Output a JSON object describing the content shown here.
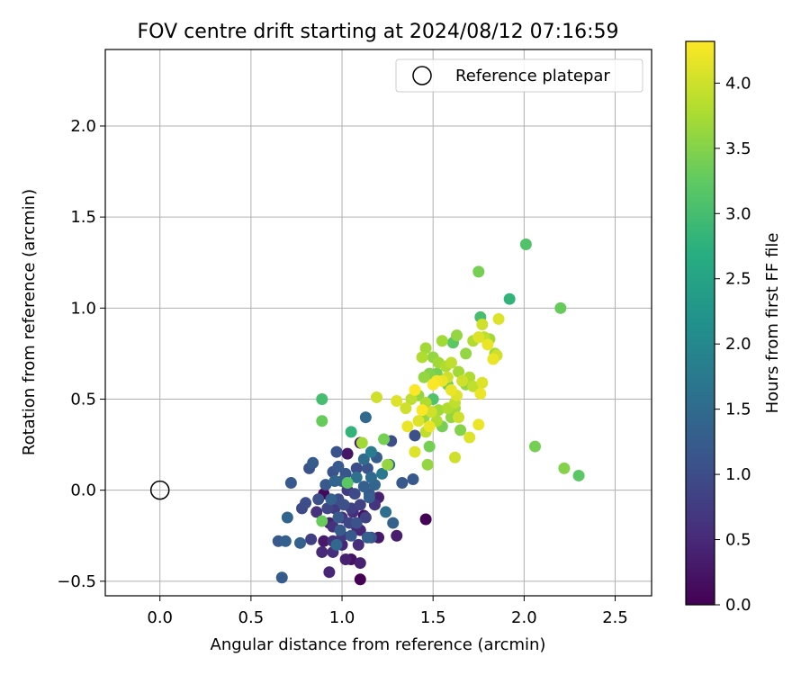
{
  "chart_data": {
    "type": "scatter",
    "title": "FOV centre drift starting at 2024/08/12 07:16:59",
    "xlabel": "Angular distance from reference (arcmin)",
    "ylabel": "Rotation from reference (arcmin)",
    "xlim": [
      -0.3,
      2.7
    ],
    "ylim": [
      -0.58,
      2.42
    ],
    "x_ticks": [
      0.0,
      0.5,
      1.0,
      1.5,
      2.0,
      2.5
    ],
    "x_tick_labels": [
      "0.0",
      "0.5",
      "1.0",
      "1.5",
      "2.0",
      "2.5"
    ],
    "y_ticks": [
      -0.5,
      0.0,
      0.5,
      1.0,
      1.5,
      2.0
    ],
    "y_tick_labels": [
      "−0.5",
      "0.0",
      "0.5",
      "1.0",
      "1.5",
      "2.0"
    ],
    "grid": true,
    "legend": {
      "placement": "top-right",
      "entries": [
        {
          "label": "Reference platepar",
          "marker": "open-circle"
        }
      ]
    },
    "reference_point": {
      "x": 0.0,
      "y": 0.0
    },
    "colorbar": {
      "label": "Hours from first FF file",
      "colormap": "viridis",
      "range": [
        0.0,
        4.32
      ],
      "ticks": [
        0.0,
        0.5,
        1.0,
        1.5,
        2.0,
        2.5,
        3.0,
        3.5,
        4.0
      ],
      "tick_labels": [
        "0.0",
        "0.5",
        "1.0",
        "1.5",
        "2.0",
        "2.5",
        "3.0",
        "3.5",
        "4.0"
      ]
    },
    "points": [
      [
        1.1,
        -0.49,
        0.0
      ],
      [
        1.46,
        -0.16,
        0.02
      ],
      [
        1.05,
        -0.38,
        0.2
      ],
      [
        1.2,
        -0.26,
        0.3
      ],
      [
        1.3,
        -0.25,
        0.35
      ],
      [
        1.1,
        -0.4,
        0.4
      ],
      [
        0.93,
        -0.45,
        0.45
      ],
      [
        0.89,
        -0.34,
        0.5
      ],
      [
        0.95,
        -0.34,
        0.55
      ],
      [
        1.02,
        -0.38,
        0.4
      ],
      [
        0.9,
        -0.28,
        0.3
      ],
      [
        0.95,
        -0.2,
        0.6
      ],
      [
        1.0,
        -0.25,
        0.7
      ],
      [
        1.08,
        -0.2,
        0.5
      ],
      [
        1.12,
        -0.14,
        0.2
      ],
      [
        1.05,
        -0.1,
        0.8
      ],
      [
        0.92,
        -0.1,
        0.9
      ],
      [
        0.98,
        -0.05,
        1.0
      ],
      [
        1.0,
        -0.15,
        0.65
      ],
      [
        1.03,
        0.0,
        0.75
      ],
      [
        0.9,
        -0.02,
        0.1
      ],
      [
        1.1,
        -0.08,
        0.85
      ],
      [
        1.2,
        -0.04,
        0.4
      ],
      [
        1.15,
        -0.02,
        1.2
      ],
      [
        1.0,
        0.05,
        1.3
      ],
      [
        0.95,
        0.1,
        1.1
      ],
      [
        1.08,
        0.12,
        1.0
      ],
      [
        1.1,
        0.26,
        0.3
      ],
      [
        1.03,
        0.2,
        0.25
      ],
      [
        0.97,
        0.21,
        1.1
      ],
      [
        0.84,
        0.15,
        1.25
      ],
      [
        0.82,
        0.12,
        1.1
      ],
      [
        0.72,
        0.04,
        1.2
      ],
      [
        0.8,
        -0.07,
        1.0
      ],
      [
        0.78,
        -0.1,
        0.95
      ],
      [
        0.7,
        -0.15,
        1.4
      ],
      [
        0.65,
        -0.28,
        1.2
      ],
      [
        0.69,
        -0.28,
        1.3
      ],
      [
        0.77,
        -0.29,
        1.35
      ],
      [
        0.83,
        -0.27,
        0.8
      ],
      [
        0.67,
        -0.48,
        1.25
      ],
      [
        0.95,
        -0.28,
        0.6
      ],
      [
        0.97,
        -0.3,
        1.45
      ],
      [
        1.05,
        -0.25,
        1.2
      ],
      [
        1.14,
        -0.26,
        1.35
      ],
      [
        1.16,
        -0.26,
        1.15
      ],
      [
        1.08,
        -0.18,
        1.1
      ],
      [
        1.24,
        -0.12,
        1.55
      ],
      [
        1.28,
        -0.18,
        1.35
      ],
      [
        1.15,
        -0.04,
        1.3
      ],
      [
        1.18,
        0.03,
        1.4
      ],
      [
        1.22,
        0.09,
        1.75
      ],
      [
        1.26,
        0.14,
        1.5
      ],
      [
        1.33,
        0.04,
        1.2
      ],
      [
        1.39,
        0.06,
        1.2
      ],
      [
        1.27,
        0.27,
        1.0
      ],
      [
        1.13,
        0.4,
        1.45
      ],
      [
        1.16,
        0.21,
        1.8
      ],
      [
        1.12,
        0.17,
        1.5
      ],
      [
        1.08,
        0.07,
        1.6
      ],
      [
        1.05,
        0.32,
        2.8
      ],
      [
        1.03,
        0.04,
        3.2
      ],
      [
        0.89,
        0.5,
        3.0
      ],
      [
        0.89,
        0.38,
        3.3
      ],
      [
        0.89,
        -0.17,
        3.3
      ],
      [
        1.23,
        0.28,
        3.4
      ],
      [
        1.25,
        0.14,
        3.6
      ],
      [
        1.11,
        0.26,
        3.7
      ],
      [
        1.19,
        0.51,
        4.0
      ],
      [
        1.3,
        0.49,
        4.1
      ],
      [
        1.36,
        0.35,
        4.2
      ],
      [
        1.4,
        0.3,
        1.05
      ],
      [
        1.4,
        0.55,
        4.3
      ],
      [
        1.44,
        0.73,
        3.8
      ],
      [
        1.46,
        0.78,
        3.7
      ],
      [
        1.5,
        0.73,
        3.6
      ],
      [
        1.53,
        0.7,
        3.7
      ],
      [
        1.55,
        0.82,
        3.7
      ],
      [
        1.48,
        0.64,
        3.5
      ],
      [
        1.52,
        0.64,
        3.4
      ],
      [
        1.45,
        0.62,
        3.6
      ],
      [
        1.42,
        0.52,
        3.6
      ],
      [
        1.38,
        0.5,
        3.9
      ],
      [
        1.5,
        0.58,
        4.3
      ],
      [
        1.55,
        0.6,
        4.2
      ],
      [
        1.58,
        0.62,
        4.0
      ],
      [
        1.6,
        0.55,
        4.2
      ],
      [
        1.63,
        0.52,
        4.1
      ],
      [
        1.62,
        0.48,
        3.9
      ],
      [
        1.58,
        0.45,
        3.8
      ],
      [
        1.53,
        0.44,
        3.7
      ],
      [
        1.49,
        0.43,
        4.0
      ],
      [
        1.45,
        0.4,
        3.6
      ],
      [
        1.42,
        0.38,
        4.1
      ],
      [
        1.46,
        0.32,
        3.9
      ],
      [
        1.48,
        0.35,
        4.2
      ],
      [
        1.52,
        0.38,
        3.8
      ],
      [
        1.55,
        0.35,
        3.4
      ],
      [
        1.6,
        0.4,
        3.6
      ],
      [
        1.64,
        0.4,
        4.0
      ],
      [
        1.65,
        0.33,
        3.5
      ],
      [
        1.7,
        0.29,
        4.1
      ],
      [
        1.75,
        0.36,
        4.2
      ],
      [
        1.62,
        0.18,
        4.0
      ],
      [
        1.48,
        0.24,
        3.4
      ],
      [
        1.47,
        0.14,
        3.6
      ],
      [
        1.4,
        0.21,
        4.1
      ],
      [
        1.63,
        0.85,
        3.6
      ],
      [
        1.61,
        0.81,
        3.2
      ],
      [
        1.68,
        0.75,
        3.6
      ],
      [
        1.72,
        0.82,
        3.8
      ],
      [
        1.75,
        0.84,
        4.1
      ],
      [
        1.78,
        0.84,
        3.9
      ],
      [
        1.81,
        0.83,
        3.7
      ],
      [
        1.77,
        0.91,
        4.0
      ],
      [
        1.8,
        0.8,
        4.2
      ],
      [
        1.76,
        0.95,
        3.0
      ],
      [
        1.86,
        0.94,
        4.1
      ],
      [
        1.84,
        0.75,
        3.7
      ],
      [
        1.83,
        0.72,
        4.2
      ],
      [
        1.85,
        0.74,
        4.0
      ],
      [
        1.7,
        0.62,
        3.8
      ],
      [
        1.68,
        0.58,
        3.6
      ],
      [
        1.66,
        0.6,
        4.0
      ],
      [
        1.64,
        0.65,
        3.7
      ],
      [
        1.72,
        0.57,
        3.9
      ],
      [
        1.76,
        0.53,
        4.2
      ],
      [
        1.77,
        0.59,
        4.1
      ],
      [
        1.75,
        1.2,
        3.4
      ],
      [
        1.92,
        1.05,
        2.8
      ],
      [
        2.01,
        1.35,
        3.1
      ],
      [
        2.2,
        1.0,
        3.3
      ],
      [
        2.06,
        0.24,
        3.4
      ],
      [
        2.22,
        0.12,
        3.5
      ],
      [
        2.3,
        0.08,
        3.2
      ],
      [
        1.58,
        0.58,
        3.4
      ],
      [
        1.52,
        0.6,
        4.25
      ],
      [
        1.57,
        0.68,
        3.8
      ],
      [
        1.6,
        0.7,
        3.9
      ],
      [
        1.44,
        0.44,
        4.3
      ],
      [
        1.35,
        0.45,
        4.0
      ],
      [
        1.5,
        0.5,
        3.1
      ],
      [
        1.46,
        0.48,
        3.8
      ],
      [
        1.62,
        0.45,
        3.7
      ],
      [
        0.98,
        -0.15,
        1.2
      ],
      [
        0.96,
        -0.1,
        0.75
      ],
      [
        1.01,
        -0.08,
        1.05
      ],
      [
        1.06,
        -0.12,
        0.55
      ],
      [
        1.1,
        -0.22,
        0.45
      ],
      [
        1.04,
        -0.18,
        0.9
      ],
      [
        0.99,
        -0.22,
        1.25
      ],
      [
        0.93,
        -0.18,
        0.35
      ],
      [
        0.94,
        -0.05,
        1.35
      ],
      [
        0.96,
        0.05,
        1.4
      ],
      [
        0.98,
        0.13,
        1.2
      ],
      [
        1.02,
        0.09,
        1.15
      ],
      [
        1.12,
        0.02,
        1.3
      ],
      [
        1.16,
        0.07,
        1.45
      ],
      [
        1.19,
        0.18,
        1.25
      ],
      [
        1.14,
        0.12,
        1.1
      ],
      [
        1.07,
        -0.02,
        0.95
      ],
      [
        0.91,
        0.03,
        1.2
      ],
      [
        0.87,
        -0.05,
        1.05
      ],
      [
        0.86,
        -0.12,
        0.6
      ],
      [
        1.18,
        -0.08,
        0.65
      ],
      [
        1.13,
        -0.15,
        0.85
      ],
      [
        1.09,
        -0.3,
        0.55
      ],
      [
        1.0,
        -0.3,
        0.45
      ]
    ]
  }
}
